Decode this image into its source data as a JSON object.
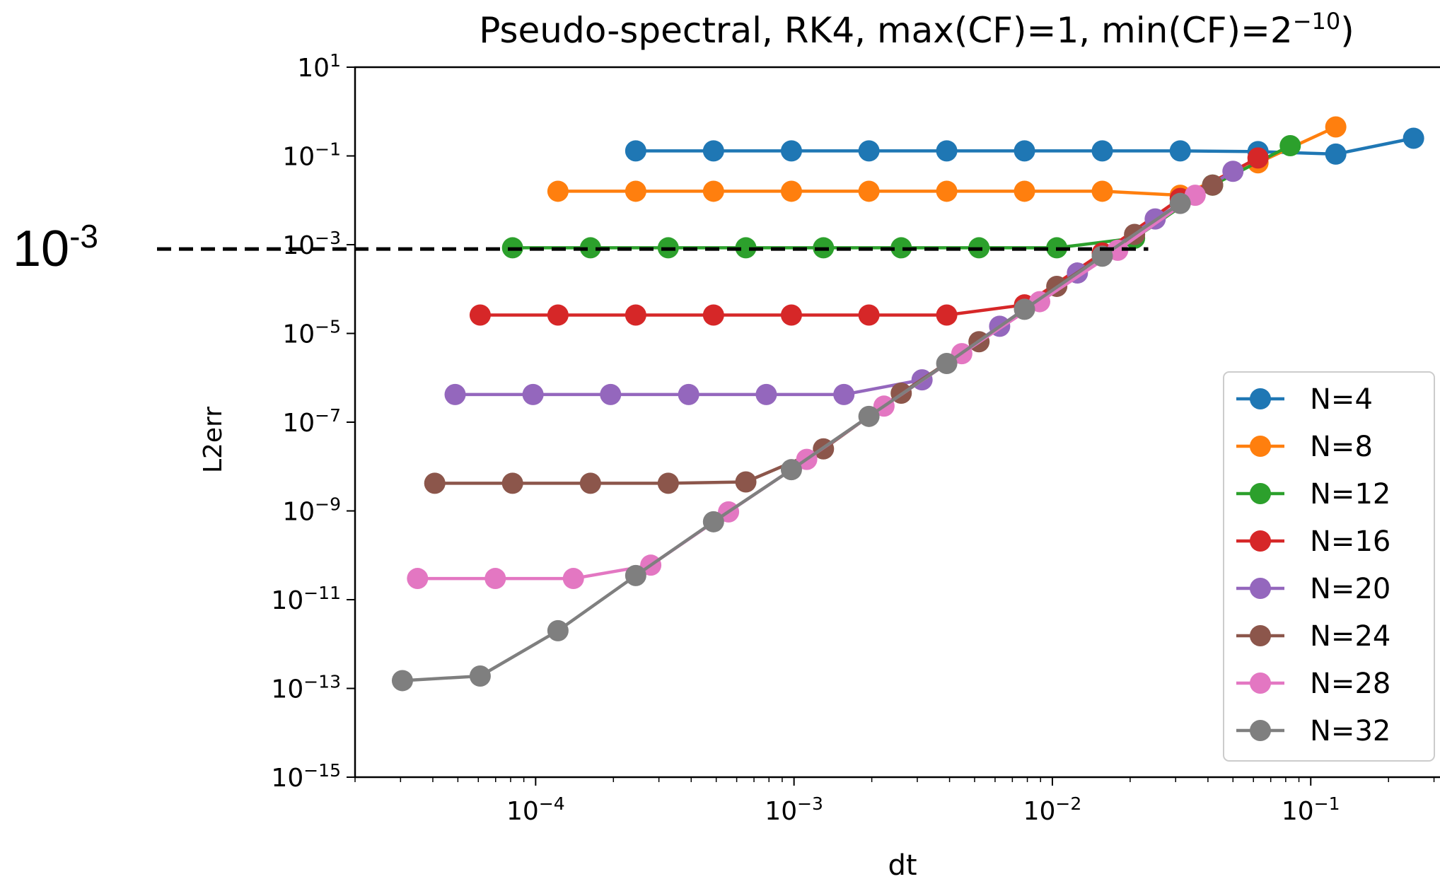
{
  "chart_data": {
    "type": "line",
    "title": {
      "prefix": "Pseudo-spectral, RK4, max(CF)=1, min(CF)=2",
      "exponent": "−10",
      "suffix": ")"
    },
    "xlabel": "dt",
    "ylabel": "L2err",
    "xscale": "log",
    "yscale": "log",
    "xlim": [
      2e-05,
      0.35
    ],
    "ylim": [
      1e-15,
      10
    ],
    "grid": false,
    "legend_position": "right",
    "x_ticks": [
      {
        "value": 0.0001,
        "base": "10",
        "exp": "−4"
      },
      {
        "value": 0.001,
        "base": "10",
        "exp": "−3"
      },
      {
        "value": 0.01,
        "base": "10",
        "exp": "−2"
      },
      {
        "value": 0.1,
        "base": "10",
        "exp": "−1"
      }
    ],
    "y_ticks": [
      {
        "value": 10,
        "base": "10",
        "exp": "1"
      },
      {
        "value": 0.1,
        "base": "10",
        "exp": "−1"
      },
      {
        "value": 0.001,
        "base": "10",
        "exp": "−3"
      },
      {
        "value": 1e-05,
        "base": "10",
        "exp": "−5"
      },
      {
        "value": 1e-07,
        "base": "10",
        "exp": "−7"
      },
      {
        "value": 1e-09,
        "base": "10",
        "exp": "−9"
      },
      {
        "value": 1e-11,
        "base": "10",
        "exp": "−11"
      },
      {
        "value": 1e-13,
        "base": "10",
        "exp": "−13"
      },
      {
        "value": 1e-15,
        "base": "10",
        "exp": "−15"
      }
    ],
    "series": [
      {
        "name": "N=4",
        "color": "#1f77b4",
        "x": [
          0.000244,
          0.000488,
          0.000977,
          0.00195,
          0.0039,
          0.0078,
          0.0156,
          0.03125,
          0.0625,
          0.125,
          0.25
        ],
        "y": [
          0.13,
          0.13,
          0.13,
          0.13,
          0.13,
          0.13,
          0.13,
          0.13,
          0.125,
          0.11,
          0.25
        ]
      },
      {
        "name": "N=8",
        "color": "#ff7f0e",
        "x": [
          0.000122,
          0.000244,
          0.000488,
          0.000977,
          0.00195,
          0.0039,
          0.0078,
          0.0156,
          0.03125,
          0.0625,
          0.125
        ],
        "y": [
          0.016,
          0.016,
          0.016,
          0.016,
          0.016,
          0.016,
          0.016,
          0.016,
          0.013,
          0.07,
          0.45
        ]
      },
      {
        "name": "N=12",
        "color": "#2ca02c",
        "x": [
          8.14e-05,
          0.000163,
          0.000326,
          0.000651,
          0.0013,
          0.0026,
          0.0052,
          0.0104,
          0.0208,
          0.0417,
          0.0833
        ],
        "y": [
          0.00085,
          0.00085,
          0.00085,
          0.00085,
          0.00085,
          0.00085,
          0.00085,
          0.00085,
          0.0014,
          0.022,
          0.17
        ]
      },
      {
        "name": "N=16",
        "color": "#d62728",
        "x": [
          6.1e-05,
          0.000122,
          0.000244,
          0.000488,
          0.000977,
          0.00195,
          0.0039,
          0.0078,
          0.0156,
          0.03125,
          0.0625
        ],
        "y": [
          2.6e-05,
          2.6e-05,
          2.6e-05,
          2.6e-05,
          2.6e-05,
          2.6e-05,
          2.6e-05,
          4.4e-05,
          0.00065,
          0.011,
          0.09
        ]
      },
      {
        "name": "N=20",
        "color": "#9467bd",
        "x": [
          4.88e-05,
          9.77e-05,
          0.000195,
          0.000391,
          0.000781,
          0.00156,
          0.00313,
          0.00625,
          0.0125,
          0.025,
          0.05
        ],
        "y": [
          4.2e-07,
          4.2e-07,
          4.2e-07,
          4.2e-07,
          4.2e-07,
          4.2e-07,
          9e-07,
          1.45e-05,
          0.00023,
          0.0038,
          0.045
        ]
      },
      {
        "name": "N=24",
        "color": "#8c564b",
        "x": [
          4.07e-05,
          8.14e-05,
          0.000163,
          0.000326,
          0.000651,
          0.0013,
          0.0026,
          0.0052,
          0.0104,
          0.0208,
          0.0417
        ],
        "y": [
          4.2e-09,
          4.2e-09,
          4.2e-09,
          4.2e-09,
          4.5e-09,
          2.5e-08,
          4.5e-07,
          6.5e-06,
          0.000115,
          0.0017,
          0.022
        ]
      },
      {
        "name": "N=28",
        "color": "#e377c2",
        "x": [
          3.49e-05,
          6.98e-05,
          0.00014,
          0.000279,
          0.000558,
          0.00112,
          0.00223,
          0.00446,
          0.00893,
          0.0179,
          0.0357
        ],
        "y": [
          3e-11,
          3e-11,
          3e-11,
          6e-11,
          9.5e-10,
          1.45e-08,
          2.3e-07,
          3.5e-06,
          5.2e-05,
          0.00075,
          0.013
        ]
      },
      {
        "name": "N=32",
        "color": "#7f7f7f",
        "x": [
          3.05e-05,
          6.1e-05,
          0.000122,
          0.000244,
          0.000488,
          0.000977,
          0.00195,
          0.0039,
          0.0078,
          0.0156,
          0.03125
        ],
        "y": [
          1.5e-13,
          1.9e-13,
          2e-12,
          3.5e-11,
          5.7e-10,
          8.5e-09,
          1.35e-07,
          2.1e-06,
          3.5e-05,
          0.00055,
          0.0085
        ]
      }
    ],
    "annotation": {
      "label_base": "10",
      "label_exp": "-3",
      "y_value": 0.0008,
      "x_end": 0.0235,
      "line_style": "dashed"
    }
  }
}
